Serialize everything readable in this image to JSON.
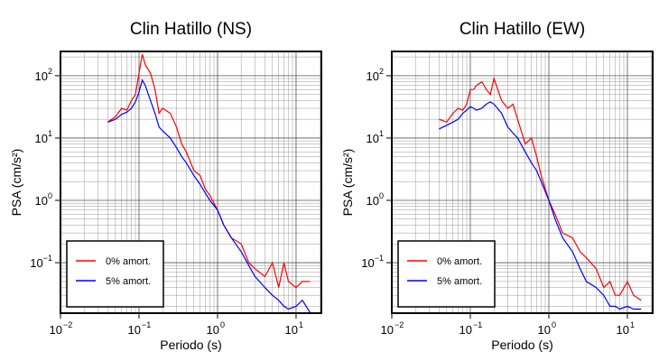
{
  "chart_data": [
    {
      "type": "line",
      "title": "Clin Hatillo (NS)",
      "x_label": "Periodo (s)",
      "y_label": "PSA (cm/s²)",
      "log_x": true,
      "log_y": true,
      "grid": true,
      "legend": "lower left",
      "xlim": [
        0.01,
        21
      ],
      "ylim": [
        0.0155,
        245
      ],
      "xticks": [
        {
          "value": 0.01,
          "label": "10",
          "exponent": "−2"
        },
        {
          "value": 0.1,
          "label": "10",
          "exponent": "−1"
        },
        {
          "value": 1,
          "label": "10",
          "exponent": "0"
        },
        {
          "value": 10,
          "label": "10",
          "exponent": "1"
        }
      ],
      "yticks": [
        {
          "value": 0.1,
          "label": "10",
          "exponent": "−1"
        },
        {
          "value": 1,
          "label": "10",
          "exponent": "0"
        },
        {
          "value": 10,
          "label": "10",
          "exponent": "1"
        },
        {
          "value": 100,
          "label": "10",
          "exponent": "2"
        }
      ],
      "x": [
        0.04,
        0.05,
        0.06,
        0.07,
        0.08,
        0.09,
        0.1,
        0.11,
        0.12,
        0.14,
        0.16,
        0.18,
        0.2,
        0.25,
        0.3,
        0.35,
        0.4,
        0.5,
        0.6,
        0.7,
        0.8,
        1,
        1.2,
        1.5,
        2,
        2.5,
        3,
        4,
        5,
        6,
        7,
        8,
        10,
        12,
        15
      ],
      "series": [
        {
          "name": "0% amort.",
          "color": "#ff0000",
          "values": [
            18,
            22,
            30,
            28,
            40,
            50,
            110,
            220,
            150,
            110,
            60,
            25,
            30,
            25,
            15,
            8,
            6,
            3,
            2.5,
            1.5,
            1.2,
            0.7,
            0.4,
            0.25,
            0.2,
            0.1,
            0.08,
            0.06,
            0.1,
            0.04,
            0.1,
            0.05,
            0.04,
            0.05,
            0.05
          ]
        },
        {
          "name": "5% amort.",
          "color": "#0000ff",
          "values": [
            18,
            20,
            24,
            26,
            30,
            38,
            55,
            85,
            70,
            40,
            25,
            15,
            13,
            10,
            7,
            5,
            4,
            2.5,
            1.8,
            1.3,
            1,
            0.7,
            0.4,
            0.25,
            0.15,
            0.09,
            0.06,
            0.04,
            0.03,
            0.025,
            0.02,
            0.018,
            0.02,
            0.025,
            0.016
          ]
        }
      ]
    },
    {
      "type": "line",
      "title": "Clin Hatillo (EW)",
      "x_label": "Periodo (s)",
      "y_label": "PSA (cm/s²)",
      "log_x": true,
      "log_y": true,
      "grid": true,
      "legend": "lower left",
      "xlim": [
        0.01,
        21
      ],
      "ylim": [
        0.0155,
        245
      ],
      "xticks": [
        {
          "value": 0.01,
          "label": "10",
          "exponent": "−2"
        },
        {
          "value": 0.1,
          "label": "10",
          "exponent": "−1"
        },
        {
          "value": 1,
          "label": "10",
          "exponent": "0"
        },
        {
          "value": 10,
          "label": "10",
          "exponent": "1"
        }
      ],
      "yticks": [
        {
          "value": 0.1,
          "label": "10",
          "exponent": "−1"
        },
        {
          "value": 1,
          "label": "10",
          "exponent": "0"
        },
        {
          "value": 10,
          "label": "10",
          "exponent": "1"
        },
        {
          "value": 100,
          "label": "10",
          "exponent": "2"
        }
      ],
      "x": [
        0.04,
        0.05,
        0.06,
        0.07,
        0.08,
        0.09,
        0.1,
        0.11,
        0.12,
        0.14,
        0.16,
        0.18,
        0.2,
        0.25,
        0.3,
        0.35,
        0.4,
        0.5,
        0.6,
        0.7,
        0.8,
        1,
        1.2,
        1.5,
        2,
        2.5,
        3,
        4,
        5,
        6,
        7,
        8,
        10,
        12,
        15
      ],
      "series": [
        {
          "name": "0% amort.",
          "color": "#ff0000",
          "values": [
            20,
            18,
            25,
            30,
            28,
            35,
            60,
            60,
            70,
            80,
            60,
            50,
            90,
            40,
            30,
            35,
            20,
            8,
            10,
            5,
            2.5,
            1,
            0.6,
            0.3,
            0.25,
            0.15,
            0.12,
            0.08,
            0.04,
            0.05,
            0.03,
            0.03,
            0.05,
            0.03,
            0.025
          ]
        },
        {
          "name": "5% amort.",
          "color": "#0000ff",
          "values": [
            14,
            16,
            18,
            20,
            25,
            28,
            32,
            30,
            28,
            30,
            35,
            38,
            35,
            25,
            15,
            12,
            10,
            6,
            4,
            3,
            2,
            1,
            0.5,
            0.25,
            0.15,
            0.08,
            0.05,
            0.04,
            0.03,
            0.02,
            0.02,
            0.018,
            0.02,
            0.018,
            0.018
          ]
        }
      ]
    }
  ]
}
